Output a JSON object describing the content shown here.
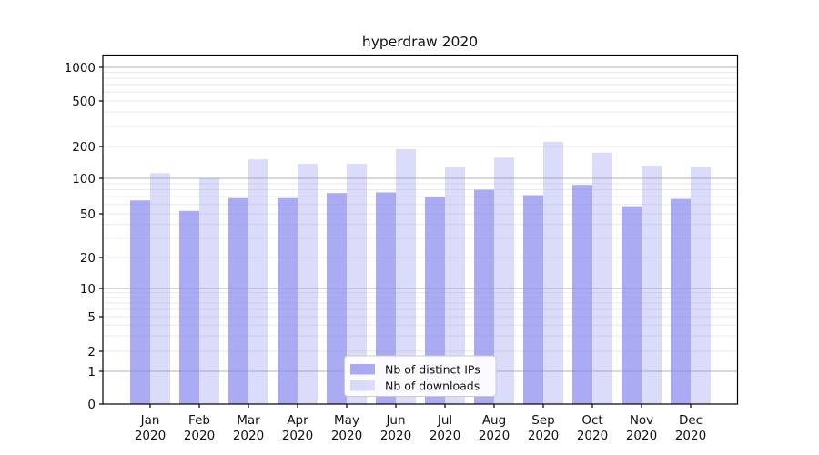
{
  "figure": {
    "background": "#ffffff"
  },
  "chart_data": {
    "type": "bar",
    "title": "hyperdraw 2020",
    "categories": [
      "Jan 2020",
      "Feb 2020",
      "Mar 2020",
      "Apr 2020",
      "May 2020",
      "Jun 2020",
      "Jul 2020",
      "Aug 2020",
      "Sep 2020",
      "Oct 2020",
      "Nov 2020",
      "Dec 2020"
    ],
    "series": [
      {
        "name": "Nb of distinct IPs",
        "color": "rgba(135,135,240,0.70)",
        "values": [
          65,
          53,
          68,
          68,
          75,
          76,
          70,
          80,
          72,
          88,
          58,
          67
        ]
      },
      {
        "name": "Nb of downloads",
        "color": "rgba(135,135,240,0.30)",
        "values": [
          112,
          100,
          151,
          137,
          137,
          189,
          128,
          157,
          220,
          175,
          132,
          128
        ]
      }
    ],
    "xlabel": "",
    "ylabel": "",
    "yscale": "symlog",
    "yticks": [
      0,
      1,
      2,
      5,
      10,
      20,
      50,
      100,
      200,
      500,
      1000
    ],
    "ylim": [
      0,
      1280
    ],
    "grid": true,
    "legend_position": "lower center"
  },
  "colors": {
    "grid_major": "#b2b2b2",
    "grid_minor": "#eaeaea",
    "spine": "#000000",
    "text": "#111111",
    "legend_border": "#cccccc",
    "legend_background": "#ffffff"
  }
}
